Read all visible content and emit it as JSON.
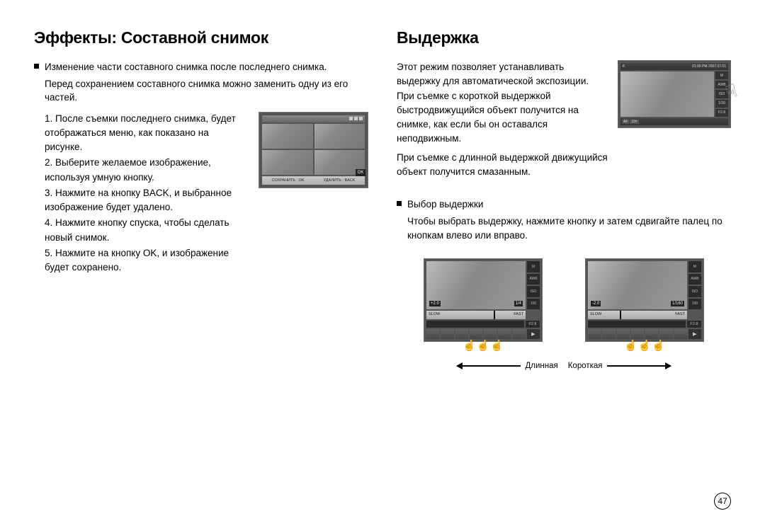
{
  "page_number": "47",
  "left": {
    "title": "Эффекты: Составной снимок",
    "lead": "Изменение части составного снимка после последнего снимка.",
    "sub": "Перед сохранением составного снимка можно заменить одну из его частей.",
    "steps": [
      "1. После съемки последнего снимка, будет отображаться меню, как показано на рисунке.",
      "2. Выберите желаемое изображение, используя умную кнопку.",
      "3. Нажмите на кнопку BACK, и выбранное изображение будет удалено.",
      "4. Нажмите кнопку спуска, чтобы сделать новый снимок.",
      "5. Нажмите на кнопку OK, и изображение будет сохранено."
    ],
    "thumb": {
      "ok": "OK",
      "foot_left": "СОХРАНИТЬ : OK",
      "foot_right": "УДАЛИТЬ : BACK"
    }
  },
  "right": {
    "title": "Выдержка",
    "intro_1": "Этот режим позволяет устанавливать выдержку для автоматической экспозиции. При съемке с короткой выдержкой быстродвижущийся объект получится на снимке, как если бы он оставался неподвижным.",
    "intro_2": "При съемке с длинной выдержкой движущийся объект получится смазанным.",
    "lcd": {
      "top_left": "8",
      "top_right": "01:00 PM 2007.07.01",
      "side": [
        "M",
        "AWB",
        "ISO",
        "1/30",
        "F2.8"
      ],
      "bot": [
        "AF",
        "",
        "10×",
        "",
        "",
        "",
        "E"
      ]
    },
    "section_title": "Выбор выдержки",
    "section_body": "Чтобы выбрать выдержку, нажмите кнопку и затем сдвигайте палец по кнопкам влево или вправо.",
    "shutter_left": {
      "ev": "+2.0",
      "speed": "1/4",
      "slow": "SLOW",
      "fast": "FAST",
      "f": "F2.8",
      "side": [
        "M",
        "AWB",
        "ISO",
        "100"
      ],
      "knob_pct": 68
    },
    "shutter_right": {
      "ev": "-2.0",
      "speed": "1/160",
      "slow": "SLOW",
      "fast": "FAST",
      "f": "F2.8",
      "side": [
        "M",
        "AWB",
        "ISO",
        "100"
      ],
      "knob_pct": 32
    },
    "arrow_left_label": "Длинная",
    "arrow_right_label": "Короткая"
  },
  "colors": {
    "text": "#000000",
    "bg": "#ffffff",
    "lcd_frame": "#555555"
  }
}
